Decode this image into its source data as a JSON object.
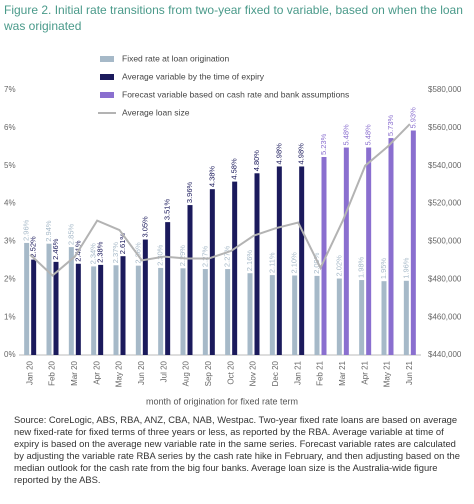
{
  "chart_data": {
    "type": "bar",
    "title": "Figure 2. Initial rate transitions from two-year fixed to variable, based on when the loan was originated",
    "x_label": "month of origination for fixed rate term",
    "source": "Source: CoreLogic, ABS, RBA, ANZ, CBA, NAB, Westpac. Two-year fixed rate loans are based on average new fixed-rate for fixed terms of three years or less, as reported by the RBA. Average variable at time of expiry is based on the average new variable rate in the same series. Forecast variable rates are calculated by adjusting the variable rate RBA series by the cash rate hike in February, and then adjusting based on the median outlook for the cash rate from the big four banks. Average loan size is the Australia-wide figure reported by the ABS.",
    "categories": [
      "Jan 20",
      "Feb 20",
      "Mar 20",
      "Apr 20",
      "May 20",
      "Jun 20",
      "Jul 20",
      "Aug 20",
      "Sep 20",
      "Oct 20",
      "Nov 20",
      "Dec 20",
      "Jan 21",
      "Feb 21",
      "Mar 21",
      "Apr 21",
      "May 21",
      "Jun 21"
    ],
    "series": [
      {
        "name": "Fixed rate at loan origination",
        "type": "bar",
        "color": "#a6b9c8",
        "values": [
          2.96,
          2.94,
          2.85,
          2.34,
          2.37,
          2.36,
          2.3,
          2.29,
          2.27,
          2.27,
          2.16,
          2.11,
          2.1,
          2.09,
          2.02,
          1.98,
          1.95,
          1.96
        ],
        "value_labels": [
          "2.96%",
          "2.94%",
          "2.85%",
          "2.34%",
          "2.37%",
          "2.36%",
          "2.30%",
          "2.29%",
          "2.27%",
          "2.27%",
          "2.16%",
          "2.11%",
          "2.10%",
          "2.09%",
          "2.02%",
          "1.98%",
          "1.95%",
          "1.96%"
        ]
      },
      {
        "name": "Average variable by the time of expiry",
        "type": "bar",
        "color": "#1b1a5c",
        "values": [
          2.52,
          2.46,
          2.41,
          2.38,
          2.61,
          3.05,
          3.51,
          3.96,
          4.38,
          4.58,
          4.8,
          4.98,
          4.98,
          null,
          null,
          null,
          null,
          null
        ],
        "value_labels": [
          "2.52%",
          "2.46%",
          "2.41%",
          "2.38%",
          "2.61%",
          "3.05%",
          "3.51%",
          "3.96%",
          "4.38%",
          "4.58%",
          "4.80%",
          "4.98%",
          "4.98%",
          null,
          null,
          null,
          null,
          null
        ]
      },
      {
        "name": "Forecast variable based on cash rate and bank assumptions",
        "type": "bar",
        "color": "#8a6fcf",
        "values": [
          null,
          null,
          null,
          null,
          null,
          null,
          null,
          null,
          null,
          null,
          null,
          null,
          null,
          5.23,
          5.48,
          5.48,
          5.73,
          5.93
        ],
        "value_labels": [
          null,
          null,
          null,
          null,
          null,
          null,
          null,
          null,
          null,
          null,
          null,
          null,
          null,
          "5.23%",
          "5.48%",
          "5.48%",
          "5.73%",
          "5.93%"
        ]
      },
      {
        "name": "Average loan size",
        "type": "line",
        "axis": "y2",
        "color": "#b3b3b3",
        "values": [
          493000,
          482000,
          492000,
          511000,
          506000,
          490000,
          492000,
          491000,
          491000,
          495000,
          503000,
          507000,
          510000,
          486000,
          511000,
          540000,
          550000,
          562000
        ]
      }
    ],
    "ylim": [
      0,
      7
    ],
    "yticks": [
      {
        "value": 0,
        "label": "0%"
      },
      {
        "value": 1,
        "label": "1%"
      },
      {
        "value": 2,
        "label": "2%"
      },
      {
        "value": 3,
        "label": "3%"
      },
      {
        "value": 4,
        "label": "4%"
      },
      {
        "value": 5,
        "label": "5%"
      },
      {
        "value": 6,
        "label": "6%"
      },
      {
        "value": 7,
        "label": "7%"
      }
    ],
    "y2lim": [
      440000,
      580000
    ],
    "y2ticks": [
      {
        "value": 440000,
        "label": "$440,000"
      },
      {
        "value": 460000,
        "label": "$460,000"
      },
      {
        "value": 480000,
        "label": "$480,000"
      },
      {
        "value": 500000,
        "label": "$500,000"
      },
      {
        "value": 520000,
        "label": "$520,000"
      },
      {
        "value": 540000,
        "label": "$540,000"
      },
      {
        "value": 560000,
        "label": "$560,000"
      },
      {
        "value": 580000,
        "label": "$580,000"
      }
    ],
    "grid": false
  }
}
